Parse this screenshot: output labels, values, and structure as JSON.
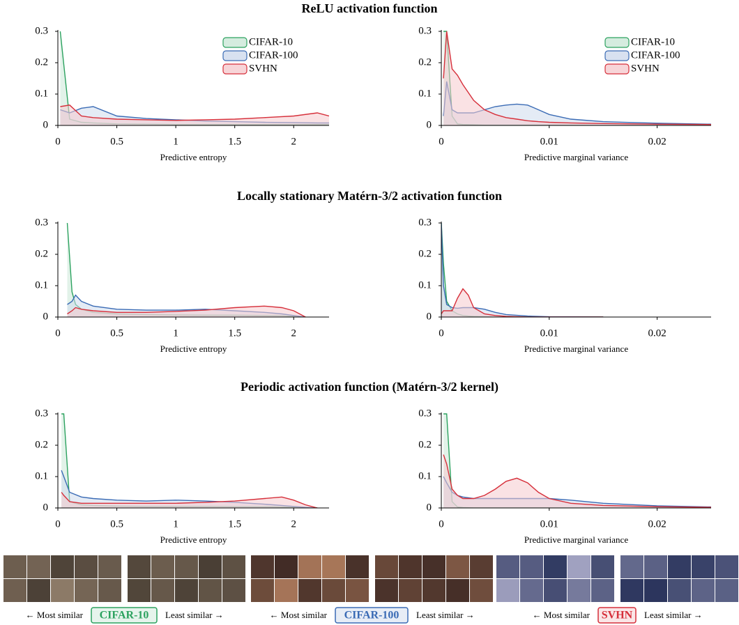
{
  "sections": [
    "ReLU activation function",
    "Locally stationary Matérn-3/2 activation function",
    "Periodic activation function (Matérn-3/2 kernel)"
  ],
  "chart_data": [
    {
      "type": "area",
      "xlabel": "Predictive entropy",
      "xlim": [
        0,
        2.3
      ],
      "xticks": [
        0,
        0.5,
        1,
        1.5,
        2
      ],
      "ylim": [
        0,
        0.3
      ],
      "yticks": [
        0,
        0.1,
        0.2,
        0.3
      ],
      "legend": "upper right",
      "x": [
        0.02,
        0.1,
        0.2,
        0.3,
        0.5,
        0.75,
        1,
        1.25,
        1.5,
        1.75,
        2,
        2.2,
        2.3
      ],
      "series": [
        {
          "name": "CIFAR-10",
          "color": "#2ca25f",
          "values": [
            0.3,
            0.02,
            0.01,
            0.008,
            0.005,
            0.004,
            0.003,
            0.003,
            0.003,
            0.003,
            0.003,
            0.003,
            0.003
          ]
        },
        {
          "name": "CIFAR-100",
          "color": "#3a6bb5",
          "values": [
            0.05,
            0.04,
            0.055,
            0.06,
            0.03,
            0.022,
            0.018,
            0.014,
            0.012,
            0.01,
            0.009,
            0.008,
            0.008
          ]
        },
        {
          "name": "SVHN",
          "color": "#d62f3a",
          "values": [
            0.06,
            0.065,
            0.03,
            0.025,
            0.02,
            0.018,
            0.016,
            0.018,
            0.02,
            0.025,
            0.03,
            0.04,
            0.03
          ]
        }
      ]
    },
    {
      "type": "area",
      "xlabel": "Predictive marginal variance",
      "xlim": [
        0,
        0.025
      ],
      "xticks": [
        0,
        0.01,
        0.02
      ],
      "ylim": [
        0,
        0.3
      ],
      "yticks": [
        0,
        0.1,
        0.2,
        0.3
      ],
      "legend": "upper right",
      "x": [
        0.0002,
        0.0005,
        0.001,
        0.0015,
        0.002,
        0.003,
        0.004,
        0.005,
        0.006,
        0.007,
        0.008,
        0.009,
        0.01,
        0.012,
        0.015,
        0.02,
        0.025
      ],
      "series": [
        {
          "name": "CIFAR-10",
          "color": "#2ca25f",
          "values": [
            0.3,
            0.3,
            0.03,
            0.005,
            0.003,
            0.002,
            0.001,
            0.001,
            0.001,
            0.001,
            0.001,
            0.001,
            0.001,
            0.001,
            0,
            0,
            0
          ]
        },
        {
          "name": "CIFAR-100",
          "color": "#3a6bb5",
          "values": [
            0.03,
            0.14,
            0.05,
            0.04,
            0.04,
            0.04,
            0.05,
            0.06,
            0.065,
            0.068,
            0.065,
            0.05,
            0.035,
            0.02,
            0.012,
            0.007,
            0.004
          ]
        },
        {
          "name": "SVHN",
          "color": "#d62f3a",
          "values": [
            0.15,
            0.3,
            0.18,
            0.16,
            0.13,
            0.08,
            0.05,
            0.035,
            0.025,
            0.02,
            0.015,
            0.012,
            0.01,
            0.008,
            0.006,
            0.004,
            0.003
          ]
        }
      ]
    },
    {
      "type": "area",
      "xlabel": "Predictive entropy",
      "xlim": [
        0,
        2.3
      ],
      "xticks": [
        0,
        0.5,
        1,
        1.5,
        2
      ],
      "ylim": [
        0,
        0.3
      ],
      "yticks": [
        0,
        0.1,
        0.2,
        0.3
      ],
      "x": [
        0.08,
        0.12,
        0.15,
        0.2,
        0.3,
        0.5,
        0.75,
        1,
        1.25,
        1.5,
        1.75,
        1.9,
        2,
        2.1
      ],
      "series": [
        {
          "color": "#2ca25f",
          "values": [
            0.3,
            0.08,
            0.04,
            0.025,
            0.015,
            0.01,
            0.008,
            0.007,
            0.006,
            0.006,
            0.005,
            0.004,
            0.002,
            0
          ]
        },
        {
          "color": "#3a6bb5",
          "values": [
            0.04,
            0.05,
            0.07,
            0.05,
            0.035,
            0.025,
            0.022,
            0.022,
            0.025,
            0.02,
            0.015,
            0.01,
            0.005,
            0
          ]
        },
        {
          "color": "#d62f3a",
          "values": [
            0.01,
            0.02,
            0.03,
            0.025,
            0.02,
            0.015,
            0.015,
            0.018,
            0.022,
            0.03,
            0.035,
            0.03,
            0.02,
            0
          ]
        }
      ]
    },
    {
      "type": "area",
      "xlabel": "Predictive marginal variance",
      "xlim": [
        0,
        0.025
      ],
      "xticks": [
        0,
        0.01,
        0.02
      ],
      "ylim": [
        0,
        0.3
      ],
      "yticks": [
        0,
        0.1,
        0.2,
        0.3
      ],
      "x": [
        0,
        0.0002,
        0.0005,
        0.001,
        0.0015,
        0.002,
        0.0025,
        0.003,
        0.004,
        0.005,
        0.006,
        0.008,
        0.01,
        0.015
      ],
      "series": [
        {
          "color": "#2ca25f",
          "values": [
            0.3,
            0.17,
            0.05,
            0.02,
            0.01,
            0.005,
            0.003,
            0.002,
            0.001,
            0,
            0,
            0,
            0,
            0
          ]
        },
        {
          "color": "#3a6bb5",
          "values": [
            0.3,
            0.1,
            0.04,
            0.03,
            0.028,
            0.03,
            0.03,
            0.03,
            0.025,
            0.015,
            0.008,
            0.003,
            0.001,
            0
          ]
        },
        {
          "color": "#d62f3a",
          "values": [
            0.01,
            0.02,
            0.02,
            0.02,
            0.06,
            0.09,
            0.07,
            0.03,
            0.01,
            0.005,
            0.002,
            0,
            0,
            0
          ]
        }
      ]
    },
    {
      "type": "area",
      "xlabel": "Predictive entropy",
      "xlim": [
        0,
        2.3
      ],
      "xticks": [
        0,
        0.5,
        1,
        1.5,
        2
      ],
      "ylim": [
        0,
        0.3
      ],
      "yticks": [
        0,
        0.1,
        0.2,
        0.3
      ],
      "x": [
        0.03,
        0.05,
        0.1,
        0.2,
        0.3,
        0.5,
        0.75,
        1,
        1.25,
        1.5,
        1.75,
        1.9,
        2,
        2.1,
        2.2
      ],
      "series": [
        {
          "color": "#2ca25f",
          "values": [
            0.3,
            0.3,
            0.02,
            0.01,
            0.008,
            0.006,
            0.005,
            0.005,
            0.005,
            0.004,
            0.004,
            0.003,
            0.002,
            0,
            0
          ]
        },
        {
          "color": "#3a6bb5",
          "values": [
            0.12,
            0.1,
            0.05,
            0.035,
            0.03,
            0.025,
            0.022,
            0.025,
            0.022,
            0.018,
            0.012,
            0.008,
            0.005,
            0.002,
            0
          ]
        },
        {
          "color": "#d62f3a",
          "values": [
            0.05,
            0.04,
            0.02,
            0.015,
            0.015,
            0.015,
            0.015,
            0.015,
            0.018,
            0.022,
            0.03,
            0.035,
            0.025,
            0.01,
            0
          ]
        }
      ]
    },
    {
      "type": "area",
      "xlabel": "Predictive marginal variance",
      "xlim": [
        0,
        0.025
      ],
      "xticks": [
        0,
        0.01,
        0.02
      ],
      "ylim": [
        0,
        0.3
      ],
      "yticks": [
        0,
        0.1,
        0.2,
        0.3
      ],
      "x": [
        0.0002,
        0.0005,
        0.001,
        0.0015,
        0.002,
        0.003,
        0.004,
        0.005,
        0.006,
        0.007,
        0.008,
        0.009,
        0.01,
        0.012,
        0.015,
        0.02,
        0.025
      ],
      "series": [
        {
          "color": "#2ca25f",
          "values": [
            0.3,
            0.3,
            0.02,
            0.003,
            0.001,
            0,
            0,
            0,
            0,
            0,
            0,
            0,
            0,
            0,
            0,
            0,
            0
          ]
        },
        {
          "color": "#3a6bb5",
          "values": [
            0.1,
            0.08,
            0.05,
            0.04,
            0.035,
            0.03,
            0.03,
            0.03,
            0.03,
            0.03,
            0.03,
            0.03,
            0.03,
            0.025,
            0.015,
            0.007,
            0.003
          ]
        },
        {
          "color": "#d62f3a",
          "values": [
            0.17,
            0.14,
            0.06,
            0.04,
            0.03,
            0.03,
            0.04,
            0.06,
            0.085,
            0.095,
            0.08,
            0.05,
            0.03,
            0.015,
            0.008,
            0.004,
            0.002
          ]
        }
      ]
    }
  ],
  "footer": [
    {
      "left": "← Most similar",
      "name": "CIFAR-10",
      "right": "Least similar →",
      "color": "#2ca25f"
    },
    {
      "left": "← Most similar",
      "name": "CIFAR-100",
      "right": "Least similar →",
      "color": "#3a6bb5"
    },
    {
      "left": "← Most similar",
      "name": "SVHN",
      "right": "Least similar →",
      "color": "#d62f3a"
    }
  ]
}
